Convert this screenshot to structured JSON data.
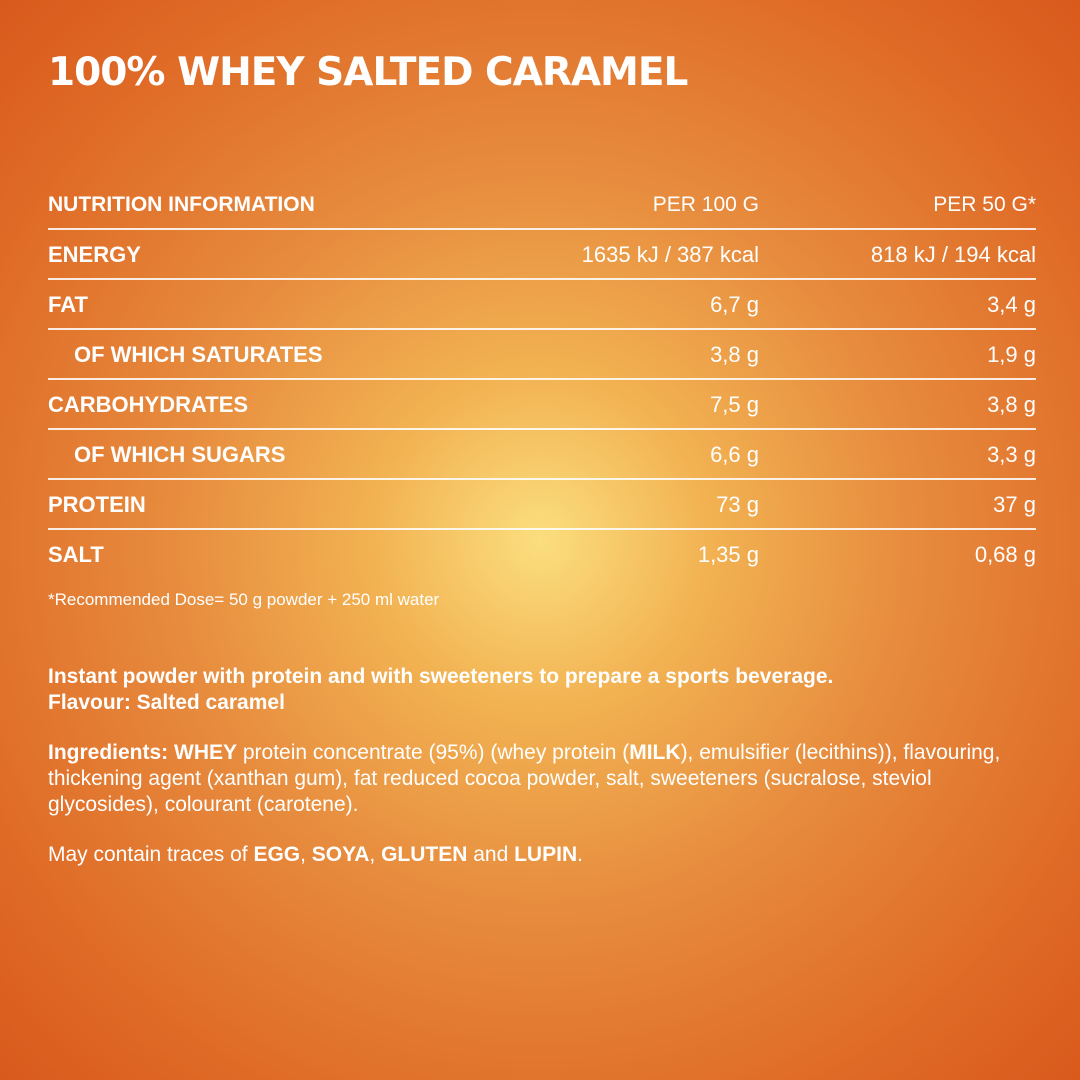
{
  "title": "100% WHEY SALTED CARAMEL",
  "table": {
    "header": [
      "NUTRITION INFORMATION",
      "PER 100 G",
      "PER 50 G*"
    ],
    "rows": [
      {
        "label": "ENERGY",
        "per100": "1635 kJ / 387 kcal",
        "per50": "818 kJ / 194 kcal"
      },
      {
        "label": "FAT",
        "per100": "6,7 g",
        "per50": "3,4 g"
      },
      {
        "label": "OF WHICH SATURATES",
        "per100": "3,8 g",
        "per50": "1,9 g"
      },
      {
        "label": "CARBOHYDRATES",
        "per100": "7,5 g",
        "per50": "3,8 g"
      },
      {
        "label": "OF WHICH SUGARS",
        "per100": "6,6 g",
        "per50": "3,3 g"
      },
      {
        "label": "PROTEIN",
        "per100": "73 g",
        "per50": "37 g"
      },
      {
        "label": "SALT",
        "per100": "1,35 g",
        "per50": "0,68 g"
      }
    ]
  },
  "footnote": "*Recommended Dose= 50 g powder + 250 ml water",
  "description": {
    "line1": "Instant powder with protein and with sweeteners to prepare a sports beverage.",
    "line2": "Flavour: Salted caramel"
  },
  "ingredients": {
    "label": "Ingredients:",
    "whey": "WHEY",
    "t1": " protein concentrate (95%) (whey protein (",
    "milk": "MILK",
    "t2": "), emulsifier (lecithins)), flavouring, thickening agent (xanthan gum), fat reduced cocoa powder, salt, sweeteners (sucralose, steviol glycosides), colourant (carotene)."
  },
  "allergens": {
    "prefix": "May contain traces of ",
    "egg": "EGG",
    "sep1": ", ",
    "soya": "SOYA",
    "sep2": ", ",
    "gluten": "GLUTEN",
    "and": " and ",
    "lupin": "LUPIN",
    "end": "."
  }
}
